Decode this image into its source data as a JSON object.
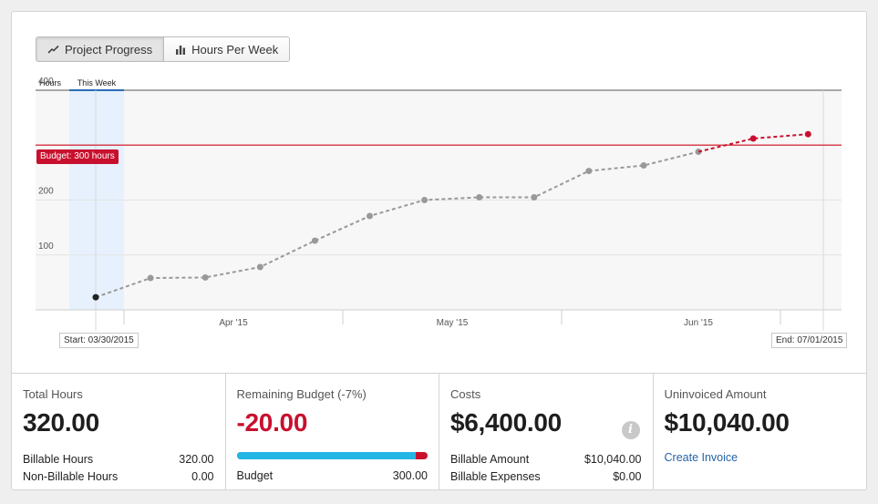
{
  "tabs": {
    "project_progress": "Project Progress",
    "hours_per_week": "Hours Per Week",
    "active": "project_progress"
  },
  "chart": {
    "axis_title": "Hours",
    "highlight_label": "This Week",
    "budget_label": "Budget: 300 hours",
    "start_label": "Start: 03/30/2015",
    "end_label": "End: 07/01/2015"
  },
  "chart_data": {
    "type": "line",
    "ylabel": "Hours",
    "ylim": [
      0,
      400
    ],
    "yticks": [
      100,
      200,
      400
    ],
    "xticks": [
      "Apr '15",
      "May '15",
      "Jun '15"
    ],
    "budget": 300,
    "series": [
      {
        "kind": "actual",
        "color": "#999999",
        "values": [
          23,
          58,
          59,
          78,
          126,
          171,
          200,
          205,
          205,
          253,
          263,
          288
        ]
      },
      {
        "kind": "forecast",
        "color": "#c8102e",
        "values": [
          288,
          312,
          320
        ]
      }
    ],
    "grid": true
  },
  "stats": {
    "total_hours": {
      "label": "Total Hours",
      "value": "320.00",
      "billable_label": "Billable Hours",
      "billable_value": "320.00",
      "nonbillable_label": "Non-Billable Hours",
      "nonbillable_value": "0.00"
    },
    "remaining_budget": {
      "label": "Remaining Budget (-7%)",
      "value": "-20.00",
      "budget_label": "Budget",
      "budget_value": "300.00",
      "progress_fraction": 0.9375,
      "colors": {
        "spent": "#23b7e5",
        "over": "#c8102e"
      }
    },
    "costs": {
      "label": "Costs",
      "value": "$6,400.00",
      "info_icon": "info-icon",
      "billable_amount_label": "Billable Amount",
      "billable_amount_value": "$10,040.00",
      "billable_expenses_label": "Billable Expenses",
      "billable_expenses_value": "$0.00"
    },
    "uninvoiced": {
      "label": "Uninvoiced Amount",
      "value": "$10,040.00",
      "link": "Create Invoice"
    }
  }
}
